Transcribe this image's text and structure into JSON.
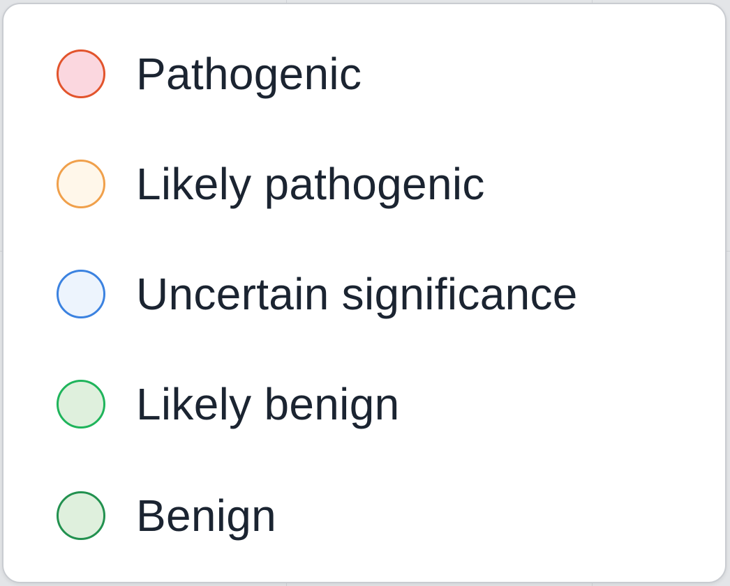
{
  "options": [
    {
      "label": "Pathogenic",
      "border_color": "#e2542c",
      "fill_color": "#fbd7df"
    },
    {
      "label": "Likely pathogenic",
      "border_color": "#f0a04b",
      "fill_color": "#fff7ea"
    },
    {
      "label": "Uncertain significance",
      "border_color": "#3b82e0",
      "fill_color": "#edf4fd"
    },
    {
      "label": "Likely benign",
      "border_color": "#1fb45b",
      "fill_color": "#dff0dd"
    },
    {
      "label": "Benign",
      "border_color": "#22914f",
      "fill_color": "#dff0dd"
    }
  ]
}
